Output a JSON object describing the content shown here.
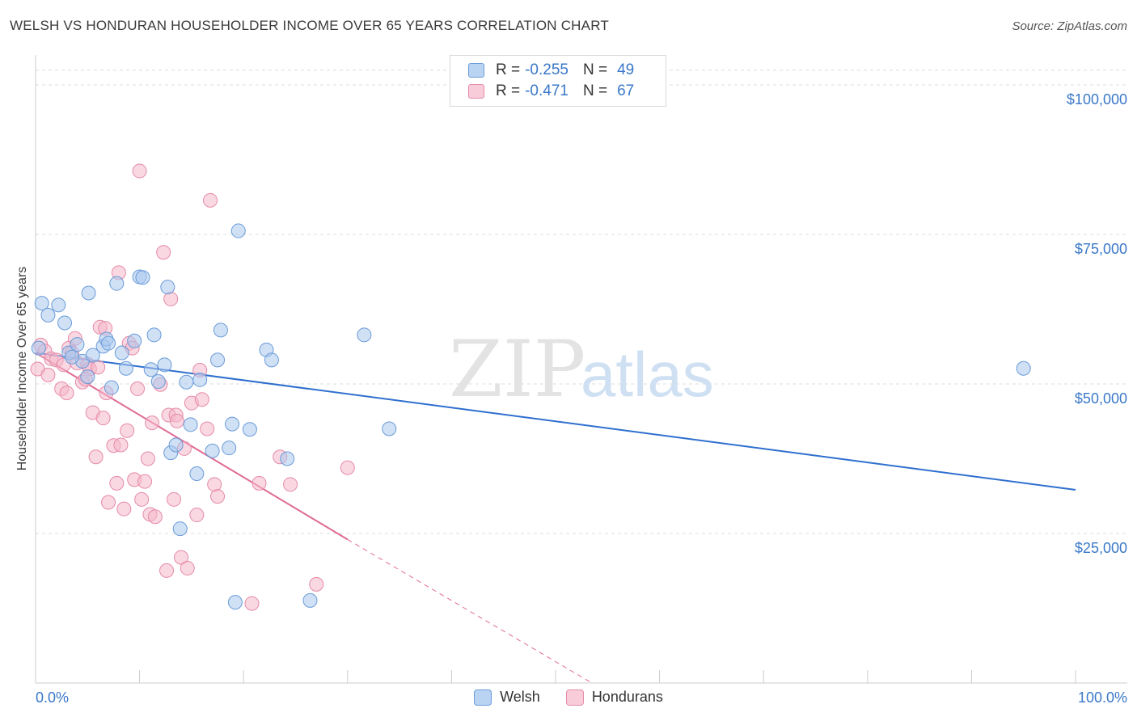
{
  "header": {
    "title": "WELSH VS HONDURAN HOUSEHOLDER INCOME OVER 65 YEARS CORRELATION CHART",
    "source": "Source: ZipAtlas.com"
  },
  "watermark": {
    "zip": "ZIP",
    "atlas": "atlas"
  },
  "legend": {
    "welsh": {
      "r_label": "R =",
      "r_value": "-0.255",
      "n_label": "N =",
      "n_value": "49"
    },
    "hondurans": {
      "r_label": "R =",
      "r_value": "-0.471",
      "n_label": "N =",
      "n_value": "67"
    }
  },
  "bottom_legend": {
    "welsh": "Welsh",
    "hondurans": "Hondurans"
  },
  "colors": {
    "welsh_fill": "#a9c8ef",
    "welsh_stroke": "#6a9bd8",
    "welsh_line": "#2f6fcf",
    "hondurans_fill": "#f4b8cb",
    "hondurans_stroke": "#e68aa8",
    "hondurans_line": "#e06b95",
    "accent_text": "#3a78c8",
    "grid": "#dcdcdc"
  },
  "chart_data": {
    "type": "scatter",
    "title": "WELSH VS HONDURAN HOUSEHOLDER INCOME OVER 65 YEARS CORRELATION CHART",
    "xlabel": "",
    "ylabel": "Householder Income Over 65 years",
    "xlim": [
      0,
      100
    ],
    "ylim": [
      0,
      105000
    ],
    "x_tick_labels": {
      "min": "0.0%",
      "max": "100.0%"
    },
    "y_ticks": [
      {
        "value": 25000,
        "label": "$25,000"
      },
      {
        "value": 50000,
        "label": "$50,000"
      },
      {
        "value": 75000,
        "label": "$75,000"
      },
      {
        "value": 100000,
        "label": "$100,000"
      }
    ],
    "series": [
      {
        "name": "Welsh",
        "points": [
          [
            0.3,
            56000
          ],
          [
            0.6,
            63500
          ],
          [
            1.2,
            61500
          ],
          [
            2.2,
            63200
          ],
          [
            2.8,
            60200
          ],
          [
            3.2,
            55200
          ],
          [
            4.0,
            56600
          ],
          [
            4.5,
            53800
          ],
          [
            5.0,
            51200
          ],
          [
            5.1,
            65200
          ],
          [
            5.5,
            54800
          ],
          [
            6.5,
            56300
          ],
          [
            6.8,
            57500
          ],
          [
            7.3,
            49400
          ],
          [
            7.8,
            66800
          ],
          [
            8.3,
            55200
          ],
          [
            8.7,
            52600
          ],
          [
            9.5,
            57200
          ],
          [
            10.0,
            67900
          ],
          [
            10.3,
            67800
          ],
          [
            11.1,
            52400
          ],
          [
            11.4,
            58200
          ],
          [
            11.8,
            50400
          ],
          [
            12.4,
            53200
          ],
          [
            12.7,
            66200
          ],
          [
            13.0,
            38500
          ],
          [
            13.5,
            39800
          ],
          [
            13.9,
            25800
          ],
          [
            14.5,
            50300
          ],
          [
            14.9,
            43200
          ],
          [
            15.5,
            35000
          ],
          [
            15.8,
            50700
          ],
          [
            17.0,
            38800
          ],
          [
            17.5,
            54000
          ],
          [
            17.8,
            59000
          ],
          [
            18.6,
            39300
          ],
          [
            18.9,
            43300
          ],
          [
            19.5,
            75600
          ],
          [
            20.6,
            42400
          ],
          [
            22.2,
            55700
          ],
          [
            22.7,
            54000
          ],
          [
            24.2,
            37500
          ],
          [
            26.4,
            13800
          ],
          [
            31.6,
            58200
          ],
          [
            34.0,
            42500
          ],
          [
            95.0,
            52600
          ],
          [
            19.2,
            13500
          ],
          [
            7.0,
            56800
          ],
          [
            3.5,
            54500
          ]
        ]
      },
      {
        "name": "Hondurans",
        "points": [
          [
            0.2,
            52500
          ],
          [
            0.5,
            56500
          ],
          [
            0.9,
            55500
          ],
          [
            1.2,
            51500
          ],
          [
            1.5,
            54200
          ],
          [
            2.0,
            54000
          ],
          [
            2.5,
            49200
          ],
          [
            3.0,
            48500
          ],
          [
            3.2,
            56000
          ],
          [
            3.5,
            55200
          ],
          [
            3.8,
            57600
          ],
          [
            4.0,
            53500
          ],
          [
            4.5,
            50300
          ],
          [
            5.0,
            53300
          ],
          [
            5.2,
            52500
          ],
          [
            5.5,
            45200
          ],
          [
            5.8,
            37800
          ],
          [
            6.0,
            52800
          ],
          [
            6.2,
            59500
          ],
          [
            6.5,
            44300
          ],
          [
            6.8,
            48500
          ],
          [
            7.0,
            30200
          ],
          [
            7.5,
            39700
          ],
          [
            7.8,
            33400
          ],
          [
            8.0,
            68600
          ],
          [
            8.2,
            39800
          ],
          [
            8.5,
            29100
          ],
          [
            8.8,
            42200
          ],
          [
            9.0,
            56800
          ],
          [
            9.3,
            56000
          ],
          [
            9.5,
            34000
          ],
          [
            9.8,
            49200
          ],
          [
            10.0,
            85600
          ],
          [
            10.2,
            30700
          ],
          [
            10.5,
            33700
          ],
          [
            10.8,
            37500
          ],
          [
            11.0,
            28200
          ],
          [
            11.2,
            43500
          ],
          [
            11.5,
            27800
          ],
          [
            12.0,
            49900
          ],
          [
            12.3,
            72000
          ],
          [
            12.6,
            18800
          ],
          [
            12.8,
            44800
          ],
          [
            13.0,
            64200
          ],
          [
            13.3,
            30700
          ],
          [
            13.5,
            44800
          ],
          [
            14.0,
            21000
          ],
          [
            14.3,
            39200
          ],
          [
            14.6,
            19200
          ],
          [
            15.0,
            46800
          ],
          [
            15.5,
            28100
          ],
          [
            15.8,
            52300
          ],
          [
            16.0,
            47400
          ],
          [
            16.5,
            42500
          ],
          [
            16.8,
            80700
          ],
          [
            17.2,
            33200
          ],
          [
            17.5,
            31200
          ],
          [
            20.8,
            13300
          ],
          [
            21.5,
            33400
          ],
          [
            23.5,
            37800
          ],
          [
            27.0,
            16500
          ],
          [
            30.0,
            36000
          ],
          [
            6.7,
            59300
          ],
          [
            2.7,
            53200
          ],
          [
            4.8,
            50800
          ],
          [
            24.5,
            33200
          ],
          [
            13.6,
            43800
          ]
        ]
      }
    ],
    "trendlines": [
      {
        "name": "Welsh",
        "x": [
          0,
          100
        ],
        "y": [
          55200,
          32300
        ],
        "style": "solid"
      },
      {
        "name": "Hondurans",
        "x": [
          0,
          30
        ],
        "y": [
          55200,
          24000
        ],
        "style": "solid"
      },
      {
        "name": "Hondurans",
        "x": [
          30,
          53.5
        ],
        "y": [
          24000,
          0
        ],
        "style": "dashed"
      }
    ]
  }
}
